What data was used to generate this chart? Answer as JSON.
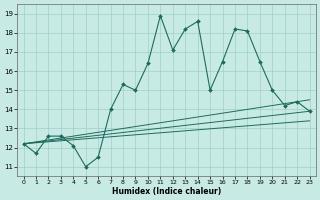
{
  "xlabel": "Humidex (Indice chaleur)",
  "ylabel": "",
  "bg_color": "#c8eae4",
  "grid_color": "#a0cfc8",
  "line_color": "#1e6b5e",
  "xlim": [
    -0.5,
    23.5
  ],
  "ylim": [
    10.5,
    19.5
  ],
  "xticks": [
    0,
    1,
    2,
    3,
    4,
    5,
    6,
    7,
    8,
    9,
    10,
    11,
    12,
    13,
    14,
    15,
    16,
    17,
    18,
    19,
    20,
    21,
    22,
    23
  ],
  "yticks": [
    11,
    12,
    13,
    14,
    15,
    16,
    17,
    18,
    19
  ],
  "line1_x": [
    0,
    1,
    2,
    3,
    4,
    5,
    6,
    7,
    8,
    9,
    10,
    11,
    12,
    13,
    14,
    15,
    16,
    17,
    18,
    19,
    20,
    21,
    22,
    23
  ],
  "line1_y": [
    12.2,
    11.7,
    12.6,
    12.6,
    12.1,
    11.0,
    11.5,
    14.0,
    15.3,
    15.0,
    16.4,
    18.9,
    17.1,
    18.2,
    18.6,
    15.0,
    16.5,
    18.2,
    18.1,
    16.5,
    15.0,
    14.2,
    14.4,
    13.9
  ],
  "line2_x": [
    0,
    23
  ],
  "line2_y": [
    12.2,
    13.9
  ],
  "line3_x": [
    0,
    23
  ],
  "line3_y": [
    12.2,
    13.4
  ],
  "line4_x": [
    0,
    23
  ],
  "line4_y": [
    12.2,
    14.5
  ]
}
